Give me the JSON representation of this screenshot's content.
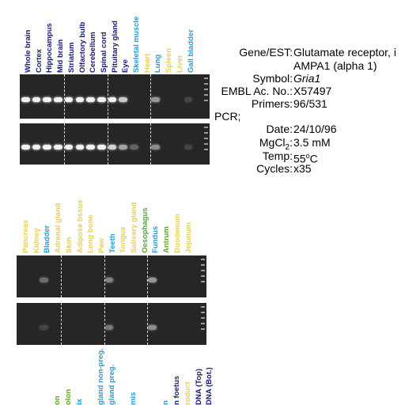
{
  "colors": {
    "dark_blue": "#1a1a7a",
    "light_blue": "#2b9bd6",
    "yellow": "#e8cf55",
    "green": "#5aa52a",
    "gel_bg": "#262626"
  },
  "panel1": {
    "lanes": [
      {
        "label": "Whole brain",
        "color": "dark_blue"
      },
      {
        "label": "Cortex",
        "color": "dark_blue"
      },
      {
        "label": "Hippocampus",
        "color": "dark_blue"
      },
      {
        "label": "Mid brain",
        "color": "dark_blue"
      },
      {
        "label": "Striatum",
        "color": "dark_blue"
      },
      {
        "label": "Olfactory bulb",
        "color": "dark_blue"
      },
      {
        "label": "Cerebellum",
        "color": "dark_blue"
      },
      {
        "label": "Spinal cord",
        "color": "dark_blue"
      },
      {
        "label": "Pituitary gland",
        "color": "dark_blue"
      },
      {
        "label": "Eye",
        "color": "dark_blue"
      },
      {
        "label": "Skeletal muscle",
        "color": "light_blue"
      },
      {
        "label": "Heart",
        "color": "yellow"
      },
      {
        "label": "Lung",
        "color": "light_blue"
      },
      {
        "label": "Spleen",
        "color": "yellow"
      },
      {
        "label": "Liver",
        "color": "yellow"
      },
      {
        "label": "Gall bladder",
        "color": "light_blue"
      }
    ],
    "gel_top_intensity": [
      1,
      1,
      1,
      1,
      1,
      1,
      1,
      1,
      1,
      0.8,
      0,
      0,
      0.55,
      0,
      0,
      0.15
    ],
    "gel_bottom_intensity": [
      1,
      1,
      1,
      1,
      1,
      1,
      1,
      1,
      0.85,
      0.6,
      0.3,
      0,
      0.5,
      0,
      0,
      0.15
    ]
  },
  "panel2": {
    "lanes": [
      {
        "label": "Pancreas",
        "color": "yellow"
      },
      {
        "label": "Kidney",
        "color": "yellow"
      },
      {
        "label": "Bladder",
        "color": "light_blue"
      },
      {
        "label": "Adrenal gland",
        "color": "yellow"
      },
      {
        "label": "Skin",
        "color": "yellow"
      },
      {
        "label": "Adipose tissue",
        "color": "yellow"
      },
      {
        "label": "Long bone",
        "color": "yellow"
      },
      {
        "label": "Paw",
        "color": "yellow"
      },
      {
        "label": "Teeth",
        "color": "light_blue"
      },
      {
        "label": "Tongue",
        "color": "yellow"
      },
      {
        "label": "Salivary gland",
        "color": "yellow"
      },
      {
        "label": "Oesophagus",
        "color": "green"
      },
      {
        "label": "Fundus",
        "color": "light_blue"
      },
      {
        "label": "Antrum",
        "color": "green"
      },
      {
        "label": "Duodenum",
        "color": "yellow"
      },
      {
        "label": "Jejunum",
        "color": "yellow"
      }
    ],
    "gel_top_intensity": [
      0,
      0,
      0.35,
      0,
      0,
      0,
      0,
      0,
      0.45,
      0,
      0,
      0,
      0.55,
      0,
      0,
      0
    ],
    "gel_bottom_intensity": [
      0,
      0,
      0.15,
      0,
      0,
      0,
      0,
      0,
      0.4,
      0,
      0,
      0,
      0.5,
      0,
      0,
      0
    ]
  },
  "panel3": {
    "lanes": [
      {
        "label": "",
        "color": "yellow"
      },
      {
        "label": "",
        "color": "yellow"
      },
      {
        "label": "on",
        "color": "green"
      },
      {
        "label": "olon",
        "color": "green"
      },
      {
        "label": "ix",
        "color": "light_blue"
      },
      {
        "label": "",
        "color": "yellow"
      },
      {
        "label": "gland non-preg.",
        "color": "light_blue"
      },
      {
        "label": "gland preg.",
        "color": "light_blue"
      },
      {
        "label": "",
        "color": "yellow"
      },
      {
        "label": "mis",
        "color": "light_blue"
      },
      {
        "label": "",
        "color": "yellow"
      },
      {
        "label": "",
        "color": "yellow"
      },
      {
        "label": "n",
        "color": "light_blue"
      },
      {
        "label": "n foetus",
        "color": "dark_blue"
      },
      {
        "label": "roduct",
        "color": "yellow"
      },
      {
        "label": "DNA (Top)",
        "color": "dark_blue"
      },
      {
        "label": "DNA (Bot.)",
        "color": "dark_blue"
      }
    ]
  },
  "info": {
    "gene_label": "Gene/EST:",
    "gene_value_1": "Glutamate receptor, i",
    "gene_value_2": "AMPA1 (alpha 1)",
    "symbol_label": "Symbol:",
    "symbol_value": "Gria1",
    "embl_label": "EMBL Ac. No.:",
    "embl_value": "X57497",
    "primers_label": "Primers:",
    "primers_value": "96/531",
    "pcr_label": "PCR;",
    "date_label": "Date:",
    "date_value": "24/10/96",
    "mgcl_label_pre": "MgCl",
    "mgcl_label_sub": "2",
    "mgcl_label_post": ":",
    "mgcl_value": "3.5 mM",
    "temp_label": "Temp:",
    "temp_value_num": "55",
    "temp_value_sup": "o",
    "temp_value_unit": "C",
    "cycles_label": "Cycles:",
    "cycles_value": "x35"
  }
}
